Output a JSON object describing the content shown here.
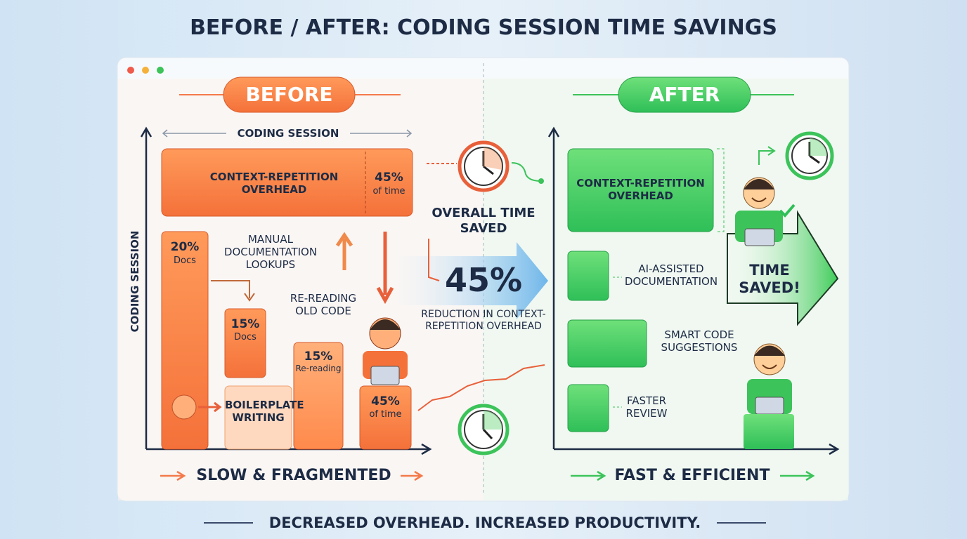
{
  "title": "BEFORE / AFTER: CODING SESSION TIME SAVINGS",
  "footer": "DECREASED OVERHEAD. INCREASED PRODUCTIVITY.",
  "before": {
    "badge": "BEFORE",
    "session_label": "CODING SESSION",
    "axis_label": "CODING SESSION",
    "overhead": {
      "label": "CONTEXT-REPETITION OVERHEAD",
      "share": "45%",
      "share_note": "of time"
    },
    "bars": [
      {
        "share": "20%",
        "label": "Docs"
      },
      {
        "share": "15%",
        "label": "Docs"
      },
      {
        "share": "15%",
        "label": "Re-reading"
      },
      {
        "share": "45%",
        "label": "of time"
      }
    ],
    "notes": [
      "MANUAL DOCUMENTATION LOOKUPS",
      "RE-READING OLD CODE",
      "BOILERPLATE WRITING"
    ],
    "caption": "SLOW & FRAGMENTED"
  },
  "center": {
    "heading": "OVERALL TIME SAVED",
    "value": "45%",
    "description": "REDUCTION IN CONTEXT-REPETITION OVERHEAD"
  },
  "after": {
    "badge": "AFTER",
    "blocks": [
      "CONTEXT-REPETITION OVERHEAD",
      "AI-ASSISTED DOCUMENTATION",
      "SMART CODE SUGGESTIONS",
      "FASTER REVIEW"
    ],
    "arrow_text": "TIME SAVED!",
    "caption": "FAST & EFFICIENT"
  }
}
